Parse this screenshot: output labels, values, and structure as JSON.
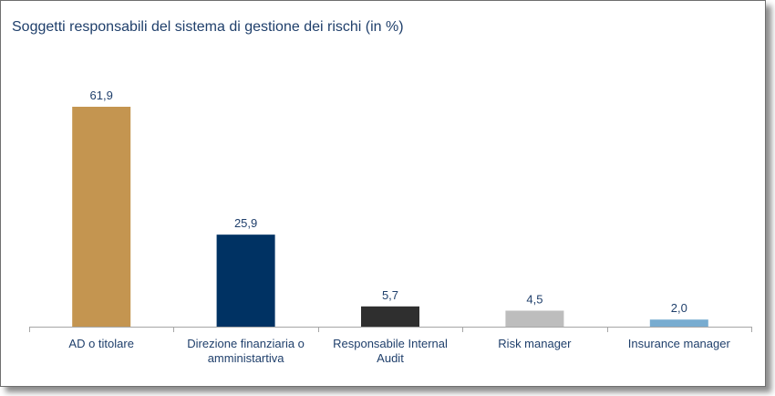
{
  "chart_data": {
    "type": "bar",
    "title": "Soggetti responsabili del sistema di gestione dei rischi (in %)",
    "xlabel": "",
    "ylabel": "",
    "ylim": [
      0,
      70
    ],
    "grid": false,
    "legend": "none",
    "categories": [
      [
        "AD o titolare"
      ],
      [
        "Direzione finanziaria o",
        "amministartiva"
      ],
      [
        "Responsabile Internal",
        "Audit"
      ],
      [
        "Risk manager"
      ],
      [
        "Insurance manager"
      ]
    ],
    "values": [
      61.9,
      25.9,
      5.7,
      4.5,
      2.0
    ],
    "value_labels": [
      "61,9",
      "25,9",
      "5,7",
      "4,5",
      "2,0"
    ],
    "colors": [
      "#c49550",
      "#003263",
      "#2f2f2f",
      "#bdbdbd",
      "#78acd0"
    ]
  }
}
